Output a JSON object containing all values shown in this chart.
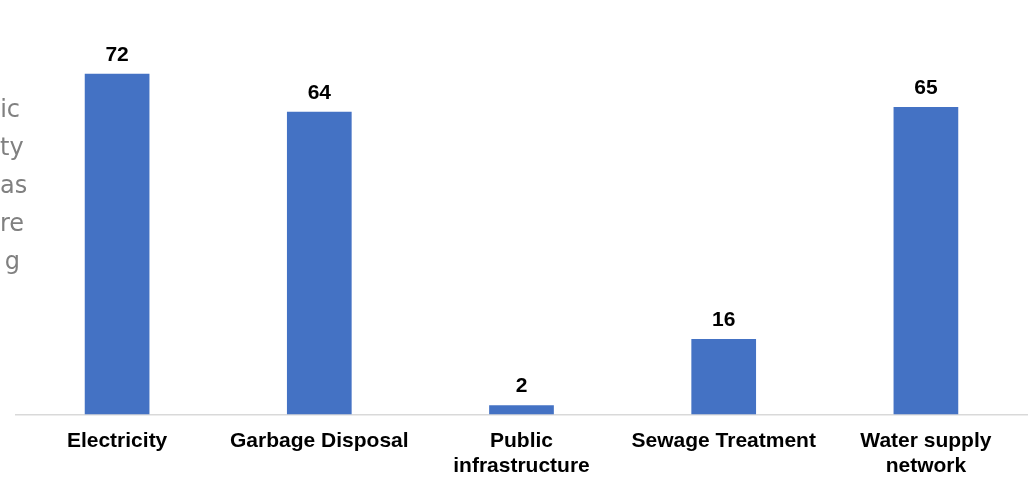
{
  "chart_data": {
    "type": "bar",
    "categories": [
      "Electricity",
      "Garbage Disposal",
      "Public infrastructure",
      "Sewage Treatment",
      "Water supply network"
    ],
    "values": [
      72,
      64,
      2,
      16,
      65
    ],
    "color": "#4472c4",
    "data_labels": true,
    "legend": false,
    "annotations": [
      "ic",
      "ty",
      "as",
      "re",
      "g"
    ]
  }
}
